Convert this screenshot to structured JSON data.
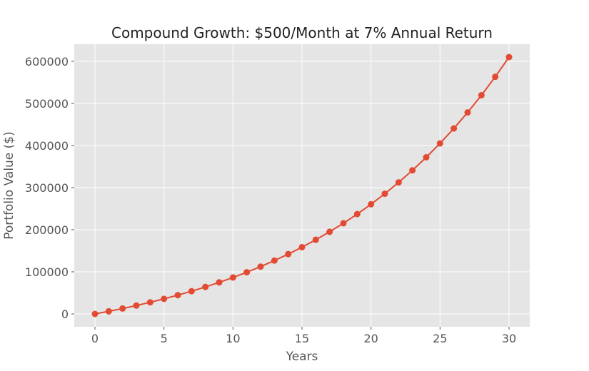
{
  "chart_data": {
    "type": "line",
    "title": "Compound Growth: $500/Month at 7% Annual Return",
    "xlabel": "Years",
    "ylabel": "Portfolio Value ($)",
    "xlim": [
      -1.5,
      31.5
    ],
    "ylim": [
      -30500,
      640500
    ],
    "xticks": [
      0,
      5,
      10,
      15,
      20,
      25,
      30
    ],
    "yticks": [
      0,
      100000,
      200000,
      300000,
      400000,
      500000,
      600000
    ],
    "grid": true,
    "style": "ggplot",
    "colors": {
      "background": "#E5E5E5",
      "grid": "#FFFFFF",
      "line": "#E24A33",
      "text": "#555555",
      "title": "#222222"
    },
    "x": [
      0,
      1,
      2,
      3,
      4,
      5,
      6,
      7,
      8,
      9,
      10,
      11,
      12,
      13,
      14,
      15,
      16,
      17,
      18,
      19,
      20,
      21,
      22,
      23,
      24,
      25,
      26,
      27,
      28,
      29,
      30
    ],
    "series": [
      {
        "values": [
          0,
          6196,
          12841,
          19965,
          27605,
          35796,
          44581,
          53999,
          64099,
          74929,
          86542,
          98995,
          112347,
          126665,
          142018,
          158481,
          176134,
          195063,
          215361,
          237126,
          260464,
          285489,
          312324,
          341098,
          371953,
          405038,
          440515,
          478556,
          519348,
          563089,
          609991
        ]
      }
    ]
  }
}
